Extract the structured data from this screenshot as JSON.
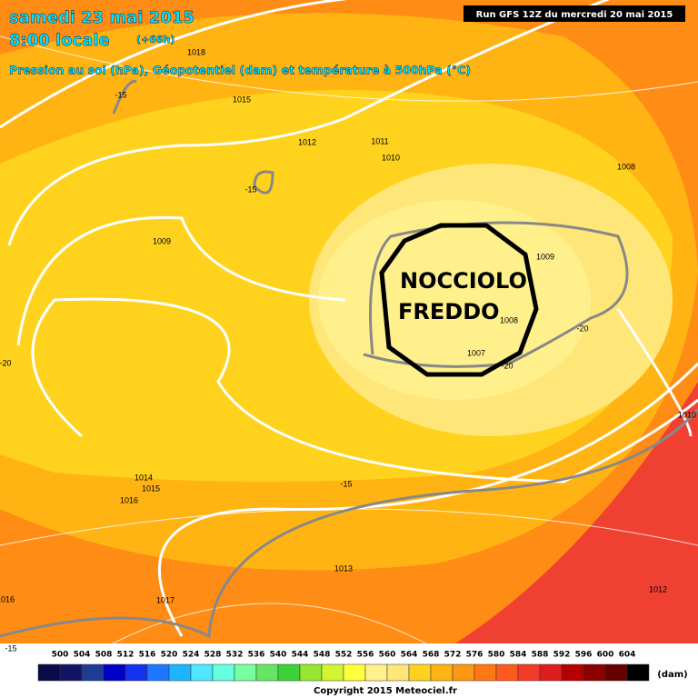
{
  "header": {
    "date": "samedi 23 mai 2015",
    "time": "8:00 locale",
    "lead": "(+66h)",
    "subtitle": "Pression au sol (hPa), Géopotentiel (dam) et température à 500hPa (°C)",
    "run": "Run GFS 12Z du mercredi 20 mai 2015"
  },
  "annotation": {
    "lines": [
      "NOCCIOLO",
      "FREDDO"
    ]
  },
  "map_labels": [
    1018,
    1015,
    1012,
    1011,
    1010,
    1008,
    1009,
    1009,
    1008,
    1007,
    1014,
    1015,
    1016,
    1013,
    1017,
    1012,
    1016,
    1010,
    -15,
    -15,
    -20,
    -20,
    -20,
    -15,
    -15
  ],
  "legend": {
    "ticks": [
      500,
      504,
      508,
      512,
      516,
      520,
      524,
      528,
      532,
      536,
      540,
      544,
      548,
      552,
      556,
      560,
      564,
      568,
      572,
      576,
      580,
      584,
      588,
      592,
      596,
      600,
      604
    ],
    "colors": [
      "#0a0a46",
      "#141464",
      "#1e3c96",
      "#0000c8",
      "#1432f0",
      "#1e78ff",
      "#1eb4ff",
      "#50e6ff",
      "#64ffdc",
      "#78ffa0",
      "#64e664",
      "#3cd23c",
      "#96e632",
      "#d2f532",
      "#ffff3c",
      "#fff08c",
      "#ffe678",
      "#ffd21e",
      "#ffb414",
      "#ff9614",
      "#ff7814",
      "#ff5a1e",
      "#f03c28",
      "#dc1e1e",
      "#b40000",
      "#8c0000",
      "#640000",
      "#000000"
    ],
    "unit": "(dam)"
  },
  "copyright": "Copyright 2015 Meteociel.fr"
}
